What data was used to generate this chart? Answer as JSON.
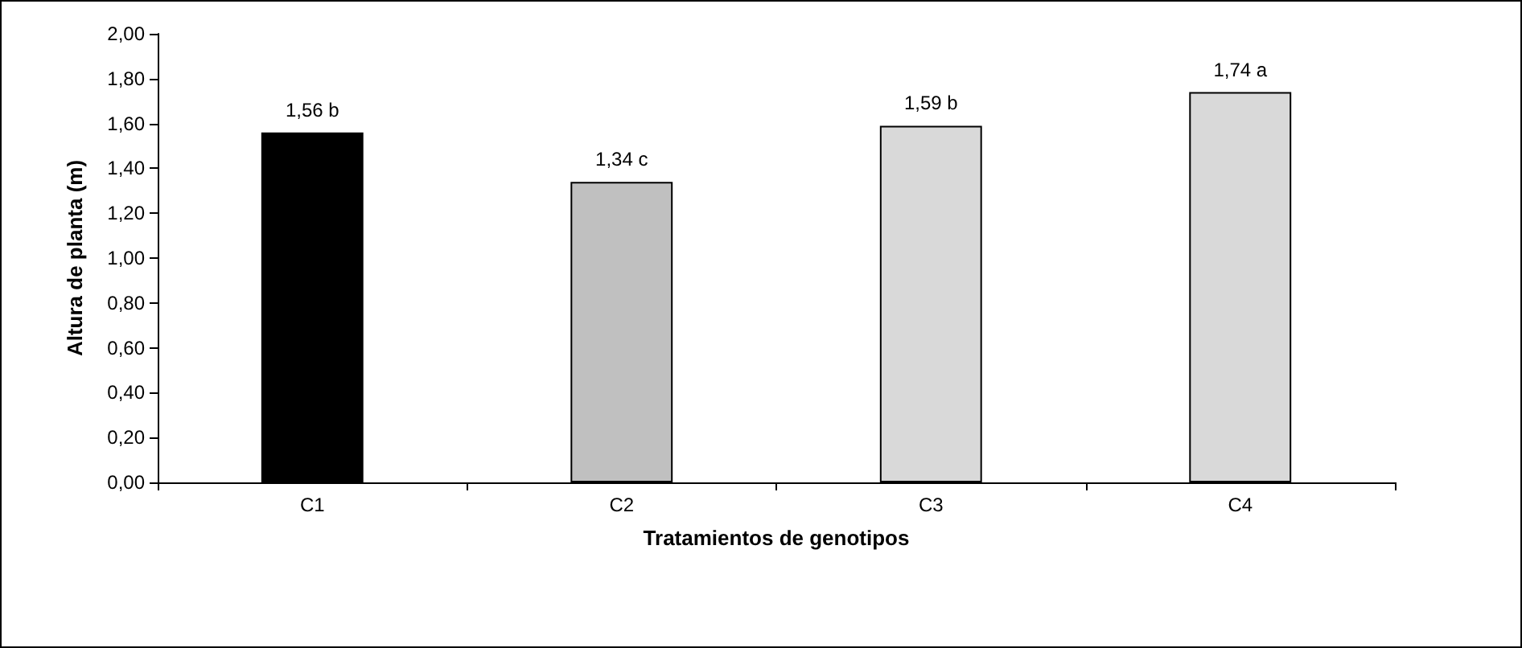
{
  "chart_data": {
    "type": "bar",
    "xlabel": "Tratamientos de genotipos",
    "ylabel": "Altura de planta (m)",
    "categories": [
      "C1",
      "C2",
      "C3",
      "C4"
    ],
    "values": [
      1.56,
      1.34,
      1.59,
      1.74
    ],
    "colors": [
      "#000000",
      "#c0c0c0",
      "#d9d9d9",
      "#d9d9d9"
    ],
    "value_labels": [
      "1,56 b",
      "1,34 c",
      "1,59 b",
      "1,74 a"
    ],
    "ylim": [
      0,
      2
    ],
    "yticks": [
      {
        "value": 0,
        "label": "0,00"
      },
      {
        "value": 0.2,
        "label": "0,20"
      },
      {
        "value": 0.4,
        "label": "0,40"
      },
      {
        "value": 0.6,
        "label": "0,60"
      },
      {
        "value": 0.8,
        "label": "0,80"
      },
      {
        "value": 1,
        "label": "1,00"
      },
      {
        "value": 1.2,
        "label": "1,20"
      },
      {
        "value": 1.4,
        "label": "1,40"
      },
      {
        "value": 1.6,
        "label": "1,60"
      },
      {
        "value": 1.8,
        "label": "1,80"
      },
      {
        "value": 2,
        "label": "2,00"
      }
    ],
    "grid": false
  }
}
